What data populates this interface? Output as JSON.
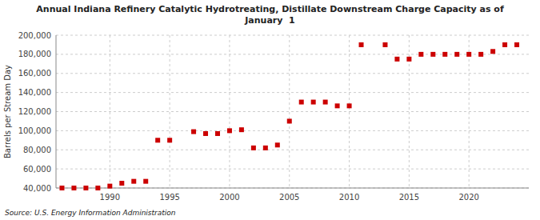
{
  "chart_data": {
    "type": "scatter",
    "title": "Annual Indiana Refinery Catalytic Hydrotreating, Distillate Downstream Charge Capacity as of\nJanuary  1",
    "ylabel": "Barrels per Stream Day",
    "source": "Source: U.S. Energy Information Administration",
    "color": "#cc0000",
    "marker": "square",
    "grid": true,
    "x": [
      1986,
      1987,
      1988,
      1989,
      1990,
      1991,
      1992,
      1993,
      1994,
      1995,
      1997,
      1998,
      1999,
      2000,
      2001,
      2002,
      2003,
      2004,
      2005,
      2006,
      2007,
      2008,
      2009,
      2010,
      2011,
      2013,
      2014,
      2015,
      2016,
      2017,
      2018,
      2019,
      2020,
      2021,
      2022,
      2023,
      2024
    ],
    "values": [
      40000,
      40000,
      40000,
      40000,
      42000,
      45000,
      47000,
      47000,
      90000,
      90000,
      99000,
      97000,
      97000,
      100000,
      101000,
      82000,
      82000,
      85000,
      110000,
      130000,
      130000,
      130000,
      126000,
      126000,
      190000,
      190000,
      175000,
      175000,
      180000,
      180000,
      180000,
      180000,
      180000,
      180000,
      183000,
      190000,
      190000
    ],
    "xlim": [
      1985.5,
      2025
    ],
    "ylim": [
      40000,
      200000
    ],
    "xticks": [
      1990,
      1995,
      2000,
      2005,
      2010,
      2015,
      2020
    ],
    "yticks": [
      {
        "value": 40000,
        "label": "40,000"
      },
      {
        "value": 60000,
        "label": "60,000"
      },
      {
        "value": 80000,
        "label": "80,000"
      },
      {
        "value": 100000,
        "label": "100,000"
      },
      {
        "value": 120000,
        "label": "120,000"
      },
      {
        "value": 140000,
        "label": "140,000"
      },
      {
        "value": 160000,
        "label": "160,000"
      },
      {
        "value": 180000,
        "label": "180,000"
      },
      {
        "value": 200000,
        "label": "200,000"
      }
    ]
  }
}
